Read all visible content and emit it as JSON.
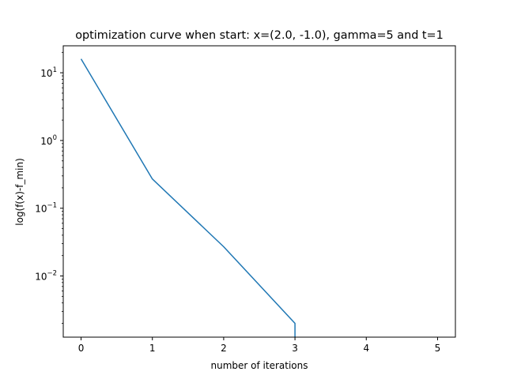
{
  "chart_data": {
    "type": "line",
    "title": "optimization curve when start: x=(2.0, -1.0), gamma=5 and t=1",
    "xlabel": "number of iterations",
    "ylabel": "log(f(x)-f_min)",
    "yscale": "log",
    "xlim": [
      -0.25,
      5.25
    ],
    "ylim": [
      0.00125,
      25
    ],
    "x_ticks": [
      0,
      1,
      2,
      3,
      4,
      5
    ],
    "x_tick_labels": [
      "0",
      "1",
      "2",
      "3",
      "4",
      "5"
    ],
    "y_ticks": [
      10,
      1,
      0.1,
      0.01
    ],
    "y_tick_labels": [
      {
        "base": "10",
        "exp": "1"
      },
      {
        "base": "10",
        "exp": "0"
      },
      {
        "base": "10",
        "exp": "−1"
      },
      {
        "base": "10",
        "exp": "−2"
      }
    ],
    "grid": false,
    "series": [
      {
        "color": "#1f77b4",
        "x": [
          0,
          1,
          2,
          3,
          3
        ],
        "y": [
          16,
          0.27,
          0.027,
          0.002,
          0.00125
        ]
      }
    ]
  }
}
